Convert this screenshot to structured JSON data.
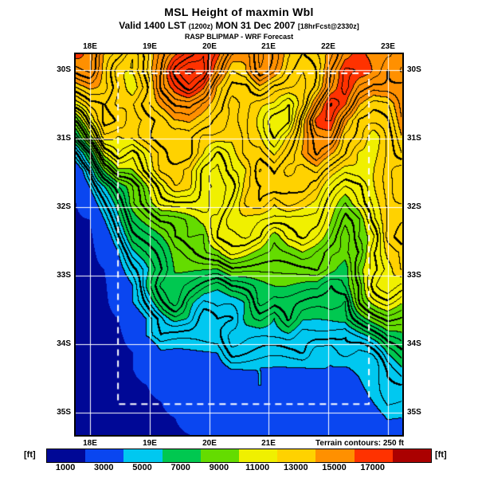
{
  "header": {
    "title": "MSL Height of maxmin Wbl",
    "valid_prefix": "Valid 1400 LST",
    "valid_zulu": "(1200z)",
    "valid_date": "MON 31 Dec 2007",
    "valid_fcst": "[18hrFcst@2330z]",
    "model_line": "RASP BLIPMAP - WRF Forecast"
  },
  "map": {
    "axis": {
      "top": [
        "18E",
        "19E",
        "20E",
        "21E",
        "22E",
        "23E"
      ],
      "bottom": [
        "18E",
        "19E",
        "20E",
        "21E"
      ],
      "left": [
        "30S",
        "31S",
        "32S",
        "33S",
        "34S",
        "35S"
      ],
      "right": [
        "30S",
        "31S",
        "32S",
        "33S",
        "34S",
        "35S"
      ]
    },
    "terrain_note": "Terrain contours: 250 ft",
    "grid_line_color": "#ffffff",
    "inner_domain_style": "white-dashed"
  },
  "colorbar": {
    "unit_left": "[ft]",
    "unit_right": "[ft]",
    "tick_labels": [
      "1000",
      "3000",
      "5000",
      "7000",
      "9000",
      "11000",
      "13000",
      "15000",
      "17000"
    ],
    "colors": [
      "#000896",
      "#0a46f0",
      "#00c8f0",
      "#00c850",
      "#64dc00",
      "#f0f000",
      "#ffd200",
      "#ff9000",
      "#ff3200",
      "#aa0000"
    ]
  },
  "chart_data": {
    "type": "heatmap",
    "title": "MSL Height of maxmin Wbl",
    "units": "ft",
    "lon_range": [
      17.76,
      23.24
    ],
    "lat_range": [
      29.77,
      35.33
    ],
    "grid_lon_deg": [
      18,
      19,
      20,
      21,
      22,
      23
    ],
    "grid_lat_deg": [
      30,
      31,
      32,
      33,
      34,
      35
    ],
    "inner_domain": {
      "lon": [
        18.47,
        22.68
      ],
      "lat": [
        30.05,
        34.88
      ]
    },
    "levels_ft": [
      1000,
      3000,
      5000,
      7000,
      9000,
      11000,
      13000,
      15000,
      17000
    ],
    "band_colors": [
      "#000896",
      "#0a46f0",
      "#00c8f0",
      "#00c850",
      "#64dc00",
      "#f0f000",
      "#ffd200",
      "#ff9000",
      "#ff3200",
      "#aa0000"
    ],
    "contour_interval_ft": 250,
    "values_unit": "kft",
    "nx": 24,
    "ny": 24,
    "values": [
      [
        14,
        14,
        13,
        13,
        12,
        13,
        14,
        15,
        16,
        17,
        16,
        14,
        13,
        14,
        13,
        12,
        12,
        13,
        14,
        15,
        15,
        14,
        14,
        14
      ],
      [
        13,
        14,
        13,
        12,
        12,
        13,
        14,
        16,
        17,
        17,
        15,
        13,
        13,
        14,
        13,
        12,
        12,
        13,
        15,
        16,
        15,
        14,
        13,
        14
      ],
      [
        12,
        13,
        13,
        12,
        11,
        12,
        14,
        15,
        16,
        15,
        13,
        12,
        12,
        13,
        12,
        12,
        12,
        13,
        15,
        16,
        14,
        13,
        13,
        13
      ],
      [
        11,
        12,
        12,
        11,
        11,
        12,
        13,
        14,
        14,
        13,
        12,
        11,
        12,
        12,
        12,
        11,
        12,
        14,
        16,
        15,
        13,
        12,
        12,
        13
      ],
      [
        9,
        11,
        12,
        11,
        10,
        11,
        12,
        13,
        13,
        12,
        11,
        11,
        12,
        12,
        11,
        11,
        13,
        15,
        15,
        13,
        12,
        12,
        12,
        13
      ],
      [
        7,
        9,
        11,
        10,
        10,
        11,
        12,
        12,
        12,
        11,
        11,
        11,
        12,
        12,
        11,
        12,
        13,
        14,
        14,
        12,
        12,
        11,
        12,
        13
      ],
      [
        4,
        6,
        9,
        10,
        9,
        10,
        11,
        12,
        12,
        11,
        10,
        11,
        12,
        12,
        11,
        12,
        13,
        14,
        13,
        12,
        11,
        11,
        12,
        13
      ],
      [
        2,
        4,
        7,
        9,
        9,
        10,
        11,
        11,
        11,
        10,
        10,
        11,
        11,
        12,
        11,
        12,
        12,
        13,
        12,
        11,
        11,
        11,
        12,
        12
      ],
      [
        1.5,
        3,
        5,
        7,
        8,
        9,
        10,
        11,
        11,
        10,
        10,
        10,
        11,
        11,
        11,
        11,
        12,
        12,
        11,
        10,
        10,
        11,
        12,
        12
      ],
      [
        1,
        2,
        4,
        6,
        8,
        9,
        10,
        10,
        10,
        10,
        9,
        10,
        11,
        11,
        10,
        11,
        11,
        11,
        10,
        9,
        10,
        11,
        12,
        12
      ],
      [
        0.8,
        1,
        3,
        5,
        7,
        8,
        9,
        9,
        9,
        9,
        9,
        10,
        10,
        10,
        10,
        10,
        10,
        10,
        9,
        8,
        9,
        11,
        12,
        12
      ],
      [
        0.7,
        0.8,
        2,
        4,
        6,
        7,
        8,
        9,
        9,
        8,
        9,
        9,
        10,
        10,
        9,
        10,
        10,
        9,
        8,
        7,
        9,
        10,
        12,
        12
      ],
      [
        0.7,
        0.7,
        1.5,
        3,
        5,
        6,
        7,
        8,
        8,
        8,
        8,
        9,
        9,
        9,
        9,
        9,
        9,
        8,
        7,
        7,
        8,
        10,
        11,
        11
      ],
      [
        0.7,
        0.7,
        1,
        2.5,
        4,
        5,
        6,
        7,
        7,
        7,
        7,
        8,
        8,
        8,
        8,
        8,
        8,
        8,
        7,
        6,
        8,
        9,
        10,
        11
      ],
      [
        0.7,
        0.7,
        0.8,
        2,
        3,
        5,
        6,
        6,
        6,
        6,
        6,
        7,
        7,
        7,
        7,
        7,
        7,
        7,
        6,
        6,
        7,
        9,
        10,
        10
      ],
      [
        0.7,
        0.7,
        0.8,
        1.5,
        3,
        4,
        5,
        6,
        5,
        5,
        6,
        6,
        6,
        7,
        6,
        6,
        6,
        6,
        6,
        5,
        7,
        8,
        9,
        9
      ],
      [
        0.7,
        0.7,
        0.7,
        1,
        2,
        3,
        4,
        5,
        5,
        4,
        5,
        5,
        6,
        6,
        5,
        6,
        5,
        5,
        5,
        5,
        6,
        7,
        8,
        8
      ],
      [
        0.7,
        0.7,
        0.7,
        0.8,
        1.5,
        3,
        4,
        4,
        4,
        4,
        4,
        5,
        5,
        5,
        5,
        5,
        4,
        4,
        4,
        4,
        5,
        6,
        7,
        7
      ],
      [
        0.7,
        0.7,
        0.7,
        0.7,
        1,
        1.5,
        3,
        3,
        3,
        3,
        3,
        4,
        4,
        4,
        4,
        4,
        4,
        3,
        3,
        4,
        4,
        5,
        6,
        6
      ],
      [
        0.7,
        0.7,
        0.7,
        0.7,
        1,
        1.5,
        2,
        2,
        2.5,
        2,
        2.5,
        3,
        3,
        3,
        3,
        3,
        3,
        3,
        3,
        3,
        3.5,
        4,
        5,
        5
      ],
      [
        0.7,
        0.7,
        0.7,
        0.7,
        0.8,
        1,
        1.5,
        2,
        2,
        2,
        2,
        2,
        2.5,
        3,
        2.5,
        2,
        2,
        2,
        2,
        2.5,
        3,
        3.5,
        4,
        4
      ],
      [
        0.7,
        0.7,
        0.7,
        0.7,
        0.7,
        0.8,
        1,
        1.5,
        2,
        2,
        2,
        2,
        2,
        2,
        2,
        2,
        2,
        2,
        2,
        2,
        2.5,
        3,
        3.5,
        3.5
      ],
      [
        0.7,
        0.7,
        0.7,
        0.7,
        0.7,
        0.7,
        0.8,
        1,
        1.5,
        2,
        2,
        2,
        2,
        2,
        2,
        2,
        2,
        2,
        2,
        2,
        2,
        2.5,
        3,
        3
      ],
      [
        0.7,
        0.7,
        0.7,
        0.7,
        0.7,
        0.7,
        0.7,
        0.8,
        1,
        1.5,
        2,
        2,
        2,
        2,
        2,
        2,
        2,
        2,
        2,
        2,
        2,
        2,
        2.5,
        2.5
      ]
    ]
  }
}
